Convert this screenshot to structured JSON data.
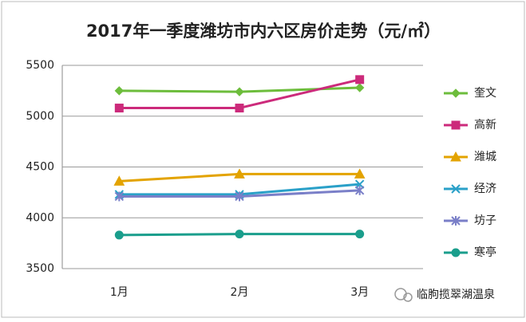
{
  "chart_data": {
    "type": "line",
    "title": "2017年一季度潍坊市内六区房价走势（元/㎡）",
    "categories": [
      "1月",
      "2月",
      "3月"
    ],
    "series": [
      {
        "name": "奎文",
        "color": "#6dbd3c",
        "marker": "diamond",
        "values": [
          5250,
          5240,
          5280
        ]
      },
      {
        "name": "高新",
        "color": "#cc2a7b",
        "marker": "square",
        "values": [
          5080,
          5080,
          5360
        ]
      },
      {
        "name": "潍城",
        "color": "#e3a300",
        "marker": "triangle",
        "values": [
          4360,
          4430,
          4430
        ]
      },
      {
        "name": "经济",
        "color": "#2aa0c8",
        "marker": "x",
        "values": [
          4230,
          4230,
          4330
        ]
      },
      {
        "name": "坊子",
        "color": "#7a7fc8",
        "marker": "star",
        "values": [
          4210,
          4210,
          4270
        ]
      },
      {
        "name": "寒亭",
        "color": "#1a9e8c",
        "marker": "circle",
        "values": [
          3830,
          3840,
          3840
        ]
      }
    ],
    "ylim": [
      3500,
      5500
    ],
    "yticks": [
      3500,
      4000,
      4500,
      5000,
      5500
    ],
    "grid": true,
    "legend": "right",
    "watermark": "临朐揽翠湖温泉"
  }
}
